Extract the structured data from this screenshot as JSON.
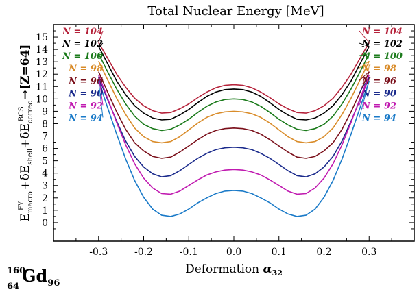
{
  "chart_data": {
    "type": "line",
    "title": "Total Nuclear Energy [MeV]",
    "xlabel": "Deformation α32",
    "ylabel": "E macro FY + δE shell + δE correc BCS → [Z=64]",
    "xlim": [
      -0.4,
      0.4
    ],
    "ylim": [
      -1.5,
      16
    ],
    "xticks": [
      -0.3,
      -0.2,
      -0.1,
      0.0,
      0.1,
      0.2,
      0.3
    ],
    "xtick_labels": [
      "-0.3",
      "-0.2",
      "-0.1",
      "0.0",
      "0.1",
      "0.2",
      "0.3"
    ],
    "yticks": [
      0,
      1,
      2,
      3,
      4,
      5,
      6,
      7,
      8,
      9,
      10,
      11,
      12,
      13,
      14,
      15
    ],
    "ytick_labels": [
      "0",
      "1",
      "2",
      "3",
      "4",
      "5",
      "6",
      "7",
      "8",
      "9",
      "10",
      "11",
      "12",
      "13",
      "14",
      "15"
    ],
    "x": [
      -0.3,
      -0.28,
      -0.26,
      -0.24,
      -0.22,
      -0.2,
      -0.18,
      -0.16,
      -0.14,
      -0.12,
      -0.1,
      -0.08,
      -0.06,
      -0.04,
      -0.02,
      0.0,
      0.02,
      0.04,
      0.06,
      0.08,
      0.1,
      0.12,
      0.14,
      0.16,
      0.18,
      0.2,
      0.22,
      0.24,
      0.26,
      0.28,
      0.3
    ],
    "series": [
      {
        "name": "N = 104",
        "label": "N = 104",
        "color": "#b5223a",
        "values": [
          14.55,
          13.3,
          12.0,
          10.95,
          10.05,
          9.45,
          9.05,
          8.85,
          8.9,
          9.2,
          9.6,
          10.1,
          10.55,
          10.9,
          11.1,
          11.15,
          11.1,
          10.9,
          10.55,
          10.1,
          9.6,
          9.2,
          8.9,
          8.85,
          9.05,
          9.45,
          10.05,
          10.95,
          12.0,
          13.3,
          14.55
        ]
      },
      {
        "name": "N = 102",
        "label": "N = 102",
        "color": "#000000",
        "values": [
          14.25,
          12.85,
          11.45,
          10.35,
          9.45,
          8.85,
          8.45,
          8.3,
          8.35,
          8.7,
          9.15,
          9.7,
          10.2,
          10.55,
          10.75,
          10.8,
          10.75,
          10.55,
          10.2,
          9.7,
          9.15,
          8.7,
          8.35,
          8.3,
          8.45,
          8.85,
          9.45,
          10.35,
          11.45,
          12.85,
          14.25
        ]
      },
      {
        "name": "N = 100",
        "label": "N = 100",
        "color": "#1a7a1a",
        "values": [
          13.65,
          12.2,
          10.8,
          9.6,
          8.6,
          7.95,
          7.6,
          7.45,
          7.55,
          7.9,
          8.35,
          8.9,
          9.4,
          9.75,
          9.95,
          10.0,
          9.95,
          9.75,
          9.4,
          8.9,
          8.35,
          7.9,
          7.55,
          7.45,
          7.6,
          7.95,
          8.6,
          9.6,
          10.8,
          12.2,
          13.65
        ]
      },
      {
        "name": "N = 98",
        "label": "N = 98",
        "color": "#d98c2a",
        "values": [
          13.05,
          11.55,
          10.05,
          8.75,
          7.65,
          6.95,
          6.55,
          6.45,
          6.55,
          6.95,
          7.5,
          8.05,
          8.5,
          8.8,
          8.95,
          9.0,
          8.95,
          8.8,
          8.5,
          8.05,
          7.5,
          6.95,
          6.55,
          6.45,
          6.55,
          6.95,
          7.65,
          8.75,
          10.05,
          11.55,
          13.05
        ]
      },
      {
        "name": "N = 96",
        "label": "N = 96",
        "color": "#7a0f1a",
        "values": [
          12.2,
          10.55,
          8.95,
          7.55,
          6.45,
          5.8,
          5.35,
          5.2,
          5.3,
          5.7,
          6.2,
          6.7,
          7.15,
          7.45,
          7.6,
          7.65,
          7.6,
          7.45,
          7.15,
          6.7,
          6.2,
          5.7,
          5.3,
          5.2,
          5.35,
          5.8,
          6.45,
          7.55,
          8.95,
          10.55,
          12.2
        ]
      },
      {
        "name": "N = 90",
        "label": "N = 90",
        "color": "#1a2a8c",
        "values": [
          11.75,
          9.95,
          8.2,
          6.6,
          5.35,
          4.5,
          3.95,
          3.7,
          3.8,
          4.2,
          4.7,
          5.2,
          5.6,
          5.9,
          6.05,
          6.1,
          6.05,
          5.9,
          5.6,
          5.2,
          4.7,
          4.2,
          3.8,
          3.7,
          3.95,
          4.5,
          5.35,
          6.6,
          8.2,
          9.95,
          11.75
        ]
      },
      {
        "name": "N = 92",
        "label": "N = 92",
        "color": "#c01ab0",
        "values": [
          11.95,
          10.05,
          8.1,
          6.3,
          4.75,
          3.6,
          2.8,
          2.35,
          2.3,
          2.55,
          3.0,
          3.45,
          3.85,
          4.1,
          4.25,
          4.3,
          4.25,
          4.1,
          3.85,
          3.45,
          3.0,
          2.55,
          2.3,
          2.35,
          2.8,
          3.6,
          4.75,
          6.3,
          8.1,
          10.05,
          11.95
        ]
      },
      {
        "name": "N = 94",
        "label": "N = 94",
        "color": "#1a7ac8",
        "values": [
          11.45,
          9.3,
          7.15,
          5.15,
          3.4,
          2.05,
          1.1,
          0.6,
          0.5,
          0.7,
          1.1,
          1.6,
          2.0,
          2.35,
          2.55,
          2.6,
          2.55,
          2.35,
          2.0,
          1.6,
          1.1,
          0.7,
          0.5,
          0.6,
          1.1,
          2.05,
          3.4,
          5.15,
          7.15,
          9.3,
          11.45
        ]
      }
    ],
    "label_values": [
      15.5,
      14.5,
      13.5,
      12.5,
      11.5,
      10.5,
      9.5,
      8.5
    ]
  },
  "nucleus": {
    "mass": "160",
    "charge": "64",
    "symbol": "Gd",
    "neutrons": "96"
  }
}
